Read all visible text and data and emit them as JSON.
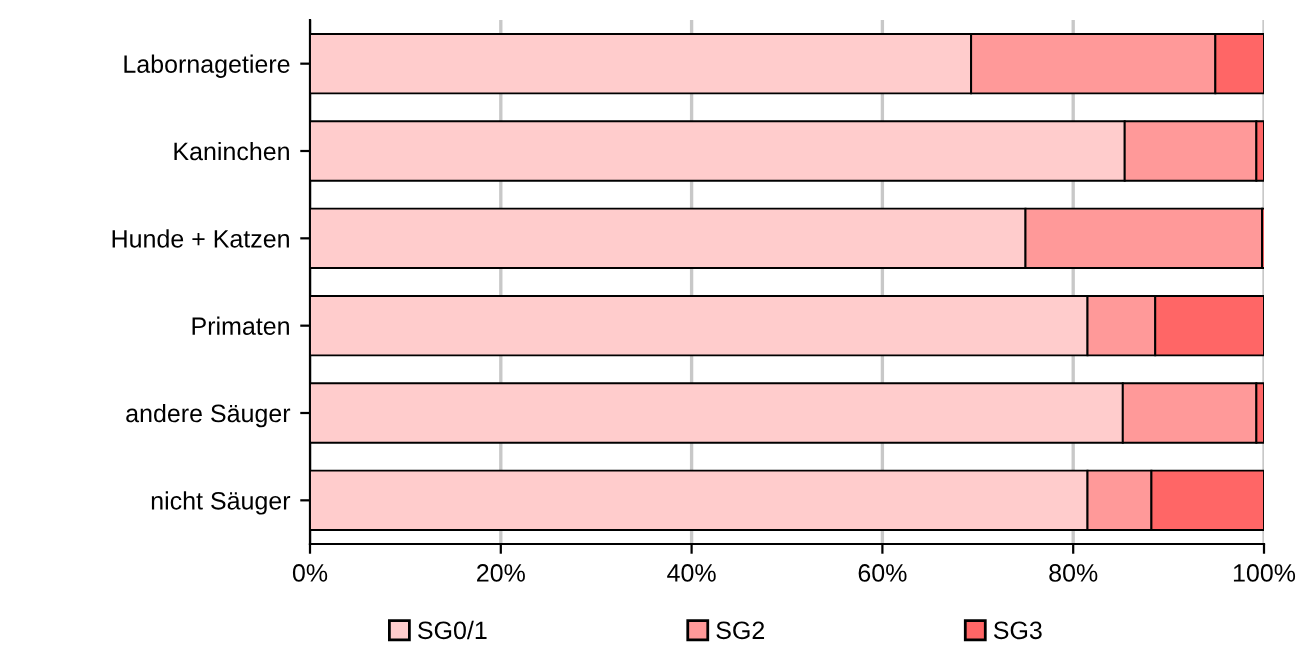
{
  "chart_data": {
    "type": "bar",
    "orientation": "horizontal",
    "stacked": true,
    "categories": [
      "Labornagetiere",
      "Kaninchen",
      "Hunde + Katzen",
      "Primaten",
      "andere Säuger",
      "nicht Säuger"
    ],
    "series": [
      {
        "name": "SG0/1",
        "color": "#ffcccc",
        "values": [
          69.3,
          85.4,
          75.0,
          81.5,
          85.2,
          81.5
        ]
      },
      {
        "name": "SG2",
        "color": "#ff9999",
        "values": [
          25.6,
          13.8,
          24.8,
          7.1,
          14.0,
          6.7
        ]
      },
      {
        "name": "SG3",
        "color": "#ff6666",
        "values": [
          5.1,
          0.8,
          0.3,
          11.4,
          0.8,
          11.8
        ]
      }
    ],
    "xlim": [
      0,
      100
    ],
    "xticks": [
      {
        "value": 0,
        "label": "0%"
      },
      {
        "value": 20,
        "label": "20%"
      },
      {
        "value": 40,
        "label": "40%"
      },
      {
        "value": 60,
        "label": "60%"
      },
      {
        "value": 80,
        "label": "80%"
      },
      {
        "value": 100,
        "label": "100%"
      }
    ],
    "grid": "x",
    "legend": "bottom"
  }
}
